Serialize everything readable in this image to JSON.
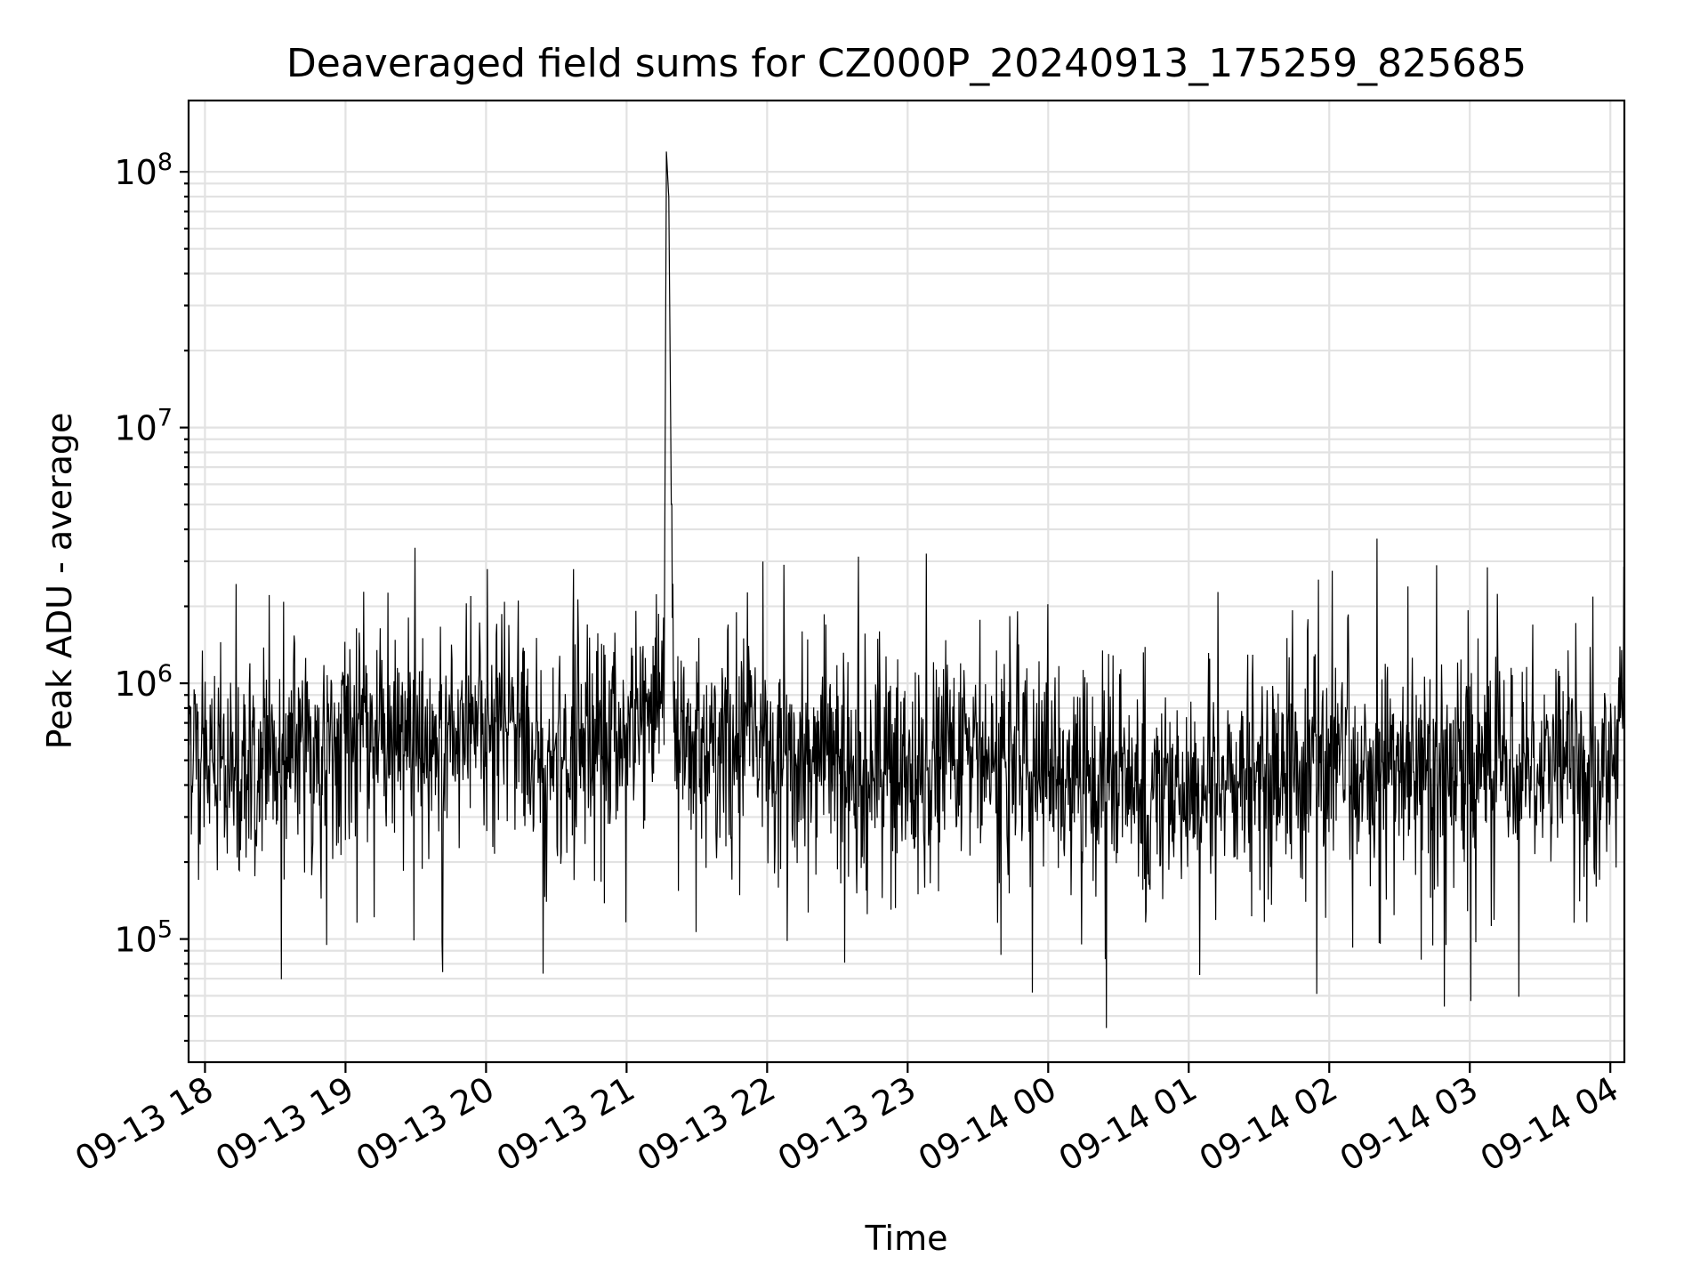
{
  "chart_data": {
    "type": "line",
    "title": "Deaveraged field sums for CZ000P_20240913_175259_825685",
    "xlabel": "Time",
    "ylabel": "Peak ADU - average",
    "yscale": "log",
    "grid": true,
    "x_tick_labels": [
      "09-13 18",
      "09-13 19",
      "09-13 20",
      "09-13 21",
      "09-13 22",
      "09-13 23",
      "09-14 00",
      "09-14 01",
      "09-14 02",
      "09-14 03",
      "09-14 04"
    ],
    "x_tick_times": [
      "2024-09-13T18:00",
      "2024-09-13T19:00",
      "2024-09-13T20:00",
      "2024-09-13T21:00",
      "2024-09-13T22:00",
      "2024-09-13T23:00",
      "2024-09-14T00:00",
      "2024-09-14T01:00",
      "2024-09-14T02:00",
      "2024-09-14T03:00",
      "2024-09-14T04:00"
    ],
    "y_ticks": [
      {
        "value": 100000,
        "base": "10",
        "exp": "5"
      },
      {
        "value": 1000000,
        "base": "10",
        "exp": "6"
      },
      {
        "value": 10000000,
        "base": "10",
        "exp": "7"
      },
      {
        "value": 100000000,
        "base": "10",
        "exp": "8"
      }
    ],
    "xlim": [
      "2024-09-13T17:53",
      "2024-09-14T04:06"
    ],
    "ylim": [
      33000,
      190000000
    ],
    "series": [
      {
        "color": "#000000",
        "x": [
          "2024-09-13T17:53",
          "2024-09-13T18:00",
          "2024-09-13T18:05",
          "2024-09-13T18:30",
          "2024-09-13T19:00",
          "2024-09-13T19:30",
          "2024-09-13T20:00",
          "2024-09-13T20:10",
          "2024-09-13T20:30",
          "2024-09-13T21:00",
          "2024-09-13T21:16",
          "2024-09-13T21:17",
          "2024-09-13T21:18",
          "2024-09-13T21:20",
          "2024-09-13T21:30",
          "2024-09-13T22:00",
          "2024-09-13T22:30",
          "2024-09-13T23:00",
          "2024-09-13T23:30",
          "2024-09-14T00:00",
          "2024-09-14T00:30",
          "2024-09-14T01:00",
          "2024-09-14T01:30",
          "2024-09-14T02:00",
          "2024-09-14T02:30",
          "2024-09-14T03:00",
          "2024-09-14T03:30",
          "2024-09-14T04:00",
          "2024-09-14T04:06"
        ],
        "y": [
          700000,
          500000,
          480000,
          520000,
          560000,
          560000,
          620000,
          700000,
          480000,
          720000,
          750000,
          120000000,
          80000000,
          600000,
          560000,
          520000,
          470000,
          450000,
          500000,
          480000,
          400000,
          380000,
          420000,
          440000,
          470000,
          500000,
          520000,
          420000,
          900000
        ]
      }
    ]
  }
}
